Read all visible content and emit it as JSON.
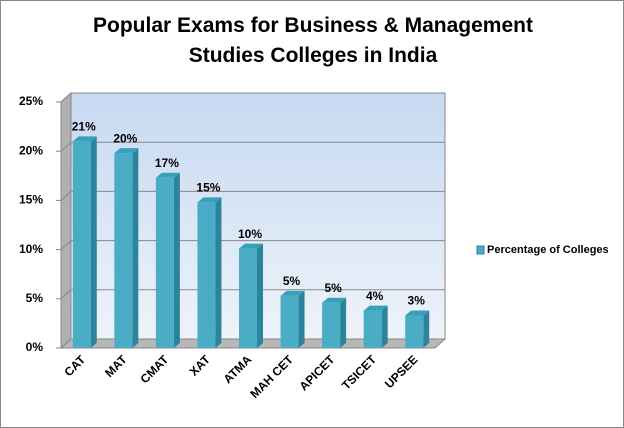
{
  "chart_data": {
    "type": "bar",
    "title": "Popular Exams for Business & Management Studies Colleges in India",
    "categories": [
      "CAT",
      "MAT",
      "CMAT",
      "XAT",
      "ATMA",
      "MAH CET",
      "APICET",
      "TSICET",
      "UPSEE"
    ],
    "series": [
      {
        "name": "Percentage of Colleges",
        "color": "#4bacc6",
        "values": [
          21,
          19.8,
          17.3,
          14.8,
          10.1,
          5.3,
          4.6,
          3.8,
          3.3
        ],
        "value_labels": [
          "21%",
          "20%",
          "17%",
          "15%",
          "10%",
          "5%",
          "5%",
          "4%",
          "3%"
        ]
      }
    ],
    "ylim": [
      0,
      25
    ],
    "yticks": [
      {
        "value": 0,
        "label": "0%"
      },
      {
        "value": 5,
        "label": "5%"
      },
      {
        "value": 10,
        "label": "10%"
      },
      {
        "value": 15,
        "label": "15%"
      },
      {
        "value": 20,
        "label": "20%"
      },
      {
        "value": 25,
        "label": "25%"
      }
    ],
    "grid": true,
    "legend": "right"
  }
}
